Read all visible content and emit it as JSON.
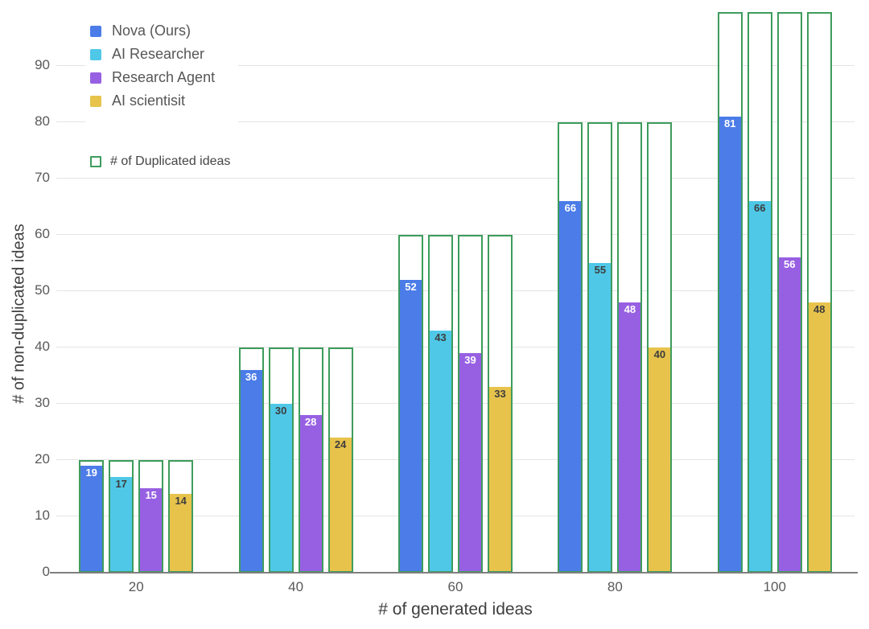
{
  "chart_data": {
    "type": "bar",
    "title": "",
    "xlabel": "# of generated ideas",
    "ylabel": "# of non-duplicated ideas",
    "categories": [
      "20",
      "40",
      "60",
      "80",
      "100"
    ],
    "series": [
      {
        "name": "Nova (Ours)",
        "color": "#4b7ce8",
        "value_label_color": "#ffffff",
        "values": [
          19,
          36,
          52,
          66,
          81
        ]
      },
      {
        "name": "AI Researcher",
        "color": "#4fc8e8",
        "value_label_color": "#3d3d3d",
        "values": [
          17,
          30,
          43,
          55,
          66
        ]
      },
      {
        "name": "Research Agent",
        "color": "#9760e2",
        "value_label_color": "#ffffff",
        "values": [
          15,
          28,
          39,
          48,
          56
        ]
      },
      {
        "name": "AI scientisit",
        "color": "#e7c34c",
        "value_label_color": "#3d3d3d",
        "values": [
          14,
          24,
          33,
          40,
          48
        ]
      }
    ],
    "duplicated_overlay": {
      "legend_label": "# of Duplicated ideas",
      "outline_color": "#3e9c5c",
      "totals": [
        20,
        40,
        60,
        80,
        100
      ]
    },
    "y_ticks": [
      0,
      10,
      20,
      30,
      40,
      50,
      60,
      70,
      80,
      90
    ],
    "ylim": [
      0,
      99.5
    ],
    "grid": true,
    "legend_position": "top-left"
  },
  "colors": {
    "gridline": "#e4e4e4",
    "axis_line": "#7f7f7f",
    "tick_text": "#595959",
    "axis_title_text": "#3f3f3f",
    "background": "#ffffff"
  }
}
